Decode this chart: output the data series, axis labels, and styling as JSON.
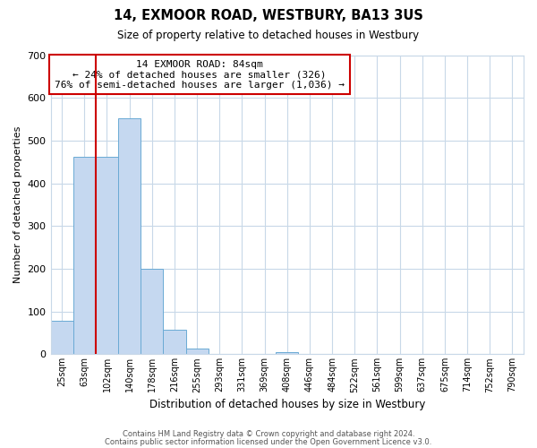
{
  "title": "14, EXMOOR ROAD, WESTBURY, BA13 3US",
  "subtitle": "Size of property relative to detached houses in Westbury",
  "xlabel": "Distribution of detached houses by size in Westbury",
  "ylabel": "Number of detached properties",
  "bar_labels": [
    "25sqm",
    "63sqm",
    "102sqm",
    "140sqm",
    "178sqm",
    "216sqm",
    "255sqm",
    "293sqm",
    "331sqm",
    "369sqm",
    "408sqm",
    "446sqm",
    "484sqm",
    "522sqm",
    "561sqm",
    "599sqm",
    "637sqm",
    "675sqm",
    "714sqm",
    "752sqm",
    "790sqm"
  ],
  "bar_values": [
    78,
    463,
    463,
    553,
    200,
    57,
    14,
    0,
    0,
    0,
    5,
    0,
    0,
    0,
    0,
    0,
    0,
    0,
    0,
    0,
    0
  ],
  "bar_color": "#c5d8f0",
  "bar_edge_color": "#6aaad4",
  "vline_color": "#cc0000",
  "annotation_title": "14 EXMOOR ROAD: 84sqm",
  "annotation_line1": "← 24% of detached houses are smaller (326)",
  "annotation_line2": "76% of semi-detached houses are larger (1,036) →",
  "annotation_box_color": "#ffffff",
  "annotation_box_edge": "#cc0000",
  "ylim": [
    0,
    700
  ],
  "yticks": [
    0,
    100,
    200,
    300,
    400,
    500,
    600,
    700
  ],
  "footer1": "Contains HM Land Registry data © Crown copyright and database right 2024.",
  "footer2": "Contains public sector information licensed under the Open Government Licence v3.0.",
  "bg_color": "#ffffff",
  "grid_color": "#c8d8e8"
}
